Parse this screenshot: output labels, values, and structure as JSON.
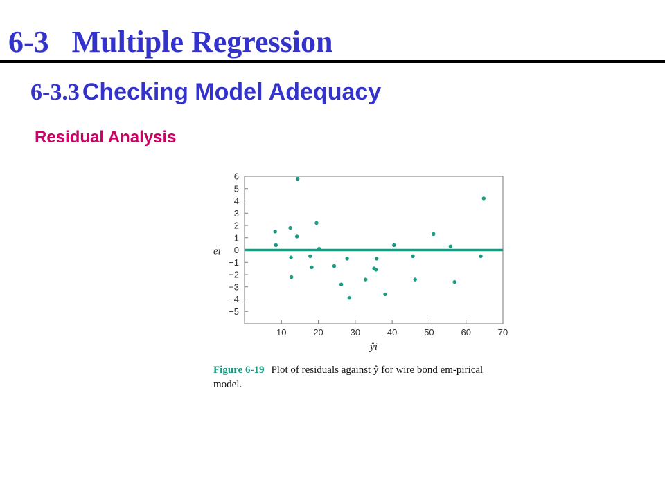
{
  "header": {
    "title": "6-3   Multiple Regression",
    "subtitle_number": "6-3.3",
    "subtitle_text": "Checking Model Adequacy",
    "section_label": "Residual Analysis"
  },
  "figure": {
    "label": "Figure 6-19",
    "caption_text": "Plot of residuals against ŷ for wire bond em-pirical model."
  },
  "chart_data": {
    "type": "scatter",
    "xlabel": "ŷi",
    "ylabel": "ei",
    "xlim": [
      0,
      70
    ],
    "ylim": [
      -6,
      6
    ],
    "x_ticks": [
      10,
      20,
      30,
      40,
      50,
      60,
      70
    ],
    "y_ticks": [
      6,
      5,
      4,
      3,
      2,
      1,
      0,
      -1,
      -2,
      -3,
      -4,
      -5
    ],
    "x_tick_labels": [
      "10",
      "20",
      "30",
      "40",
      "50",
      "60",
      "70"
    ],
    "y_tick_labels": [
      "6",
      "5",
      "4",
      "3",
      "2",
      "1",
      "0",
      "−1",
      "−2",
      "−3",
      "−4",
      "−5"
    ],
    "reference_line": 0,
    "grid": false,
    "colors": {
      "points": "#1a9a80",
      "zero_line": "#1a9a80",
      "frame": "#777777"
    },
    "points": [
      {
        "x": 8.3,
        "y": 1.5
      },
      {
        "x": 8.5,
        "y": 0.4
      },
      {
        "x": 12.4,
        "y": 1.8
      },
      {
        "x": 12.6,
        "y": -0.6
      },
      {
        "x": 12.7,
        "y": -2.2
      },
      {
        "x": 14.2,
        "y": 1.1
      },
      {
        "x": 14.4,
        "y": 5.8
      },
      {
        "x": 17.8,
        "y": -0.5
      },
      {
        "x": 18.2,
        "y": -1.4
      },
      {
        "x": 19.5,
        "y": 2.2
      },
      {
        "x": 20.2,
        "y": 0.1
      },
      {
        "x": 24.3,
        "y": -1.3
      },
      {
        "x": 26.2,
        "y": -2.8
      },
      {
        "x": 27.8,
        "y": -0.7
      },
      {
        "x": 28.4,
        "y": -3.9
      },
      {
        "x": 32.8,
        "y": -2.4
      },
      {
        "x": 35.1,
        "y": -1.5
      },
      {
        "x": 35.6,
        "y": -1.6
      },
      {
        "x": 35.8,
        "y": -0.7
      },
      {
        "x": 38.1,
        "y": -3.6
      },
      {
        "x": 40.5,
        "y": 0.4
      },
      {
        "x": 45.6,
        "y": -0.5
      },
      {
        "x": 46.2,
        "y": -2.4
      },
      {
        "x": 51.2,
        "y": 1.3
      },
      {
        "x": 55.8,
        "y": 0.3
      },
      {
        "x": 56.9,
        "y": -2.6
      },
      {
        "x": 64.0,
        "y": -0.5
      },
      {
        "x": 64.8,
        "y": 4.2
      }
    ]
  }
}
